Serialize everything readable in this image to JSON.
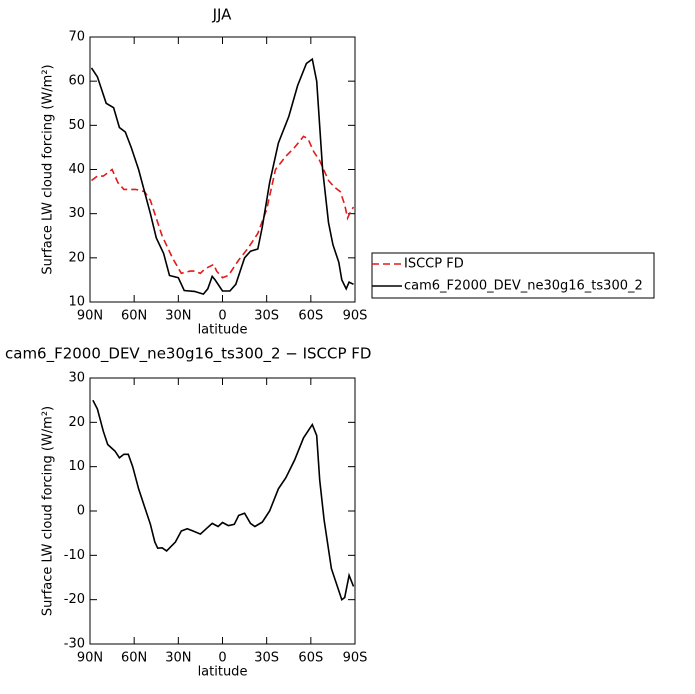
{
  "chart_data": [
    {
      "type": "line",
      "title": "JJA",
      "xlabel": "latitude",
      "ylabel": "Surface LW cloud forcing (W/m²)",
      "xlim": [
        90,
        -90
      ],
      "xticks": [
        {
          "value": 90,
          "label": "90N"
        },
        {
          "value": 60,
          "label": "60N"
        },
        {
          "value": 30,
          "label": "30N"
        },
        0,
        {
          "value": -30,
          "label": "30S"
        },
        {
          "value": -60,
          "label": "60S"
        },
        {
          "value": -90,
          "label": "90S"
        }
      ],
      "ylim": [
        10,
        70
      ],
      "yticks": [
        10,
        20,
        30,
        40,
        50,
        60,
        70
      ],
      "legend": "right",
      "series": [
        {
          "name": "ISCCP FD",
          "color": "#e31a1c",
          "dashed": true,
          "x": [
            89,
            85,
            81,
            75,
            71,
            67,
            59,
            53,
            49,
            46,
            41,
            34,
            28,
            22,
            19,
            15,
            12,
            6,
            4,
            0,
            -4,
            -11,
            -17,
            -24,
            -30,
            -36,
            -43,
            -49,
            -55,
            -58,
            -62,
            -66,
            -72,
            -76,
            -80,
            -83,
            -85,
            -87,
            -89
          ],
          "values": [
            37.5,
            38.5,
            38.5,
            40,
            37,
            35.5,
            35.5,
            35,
            33,
            30,
            25,
            20,
            16.5,
            17,
            17,
            16.5,
            17.5,
            18.5,
            17,
            15.5,
            16,
            19.5,
            22,
            25.5,
            31,
            40,
            43,
            45,
            47.5,
            47,
            44,
            42,
            37.5,
            36,
            35,
            32,
            29,
            30.5,
            31.5
          ]
        },
        {
          "name": "cam6_F2000_DEV_ne30g16_ts300_2",
          "color": "#000000",
          "dashed": false,
          "x": [
            89,
            85,
            79,
            74,
            70,
            66,
            62,
            57,
            49,
            45,
            40,
            36,
            30,
            26,
            19,
            13,
            10,
            7,
            5,
            0,
            -5,
            -9,
            -15,
            -19,
            -24,
            -27,
            -32,
            -38,
            -45,
            -51,
            -57,
            -61,
            -64,
            -68,
            -72,
            -75,
            -79,
            -81,
            -84,
            -86,
            -89
          ],
          "values": [
            63,
            61,
            55,
            54,
            49.5,
            48.5,
            45,
            40,
            30,
            24.5,
            21,
            16,
            15.5,
            12.6,
            12.4,
            11.8,
            13,
            15.8,
            15,
            12.5,
            12.5,
            14,
            20,
            21.5,
            22,
            27,
            37,
            46,
            52,
            59,
            64,
            65,
            60,
            40,
            28,
            23,
            19,
            15,
            13,
            14.5,
            14
          ]
        }
      ]
    },
    {
      "type": "line",
      "title": "cam6_F2000_DEV_ne30g16_ts300_2 − ISCCP FD",
      "xlabel": "latitude",
      "ylabel": "Surface LW cloud forcing (W/m²)",
      "xlim": [
        90,
        -90
      ],
      "xticks": [
        {
          "value": 90,
          "label": "90N"
        },
        {
          "value": 60,
          "label": "60N"
        },
        {
          "value": 30,
          "label": "30N"
        },
        0,
        {
          "value": -30,
          "label": "30S"
        },
        {
          "value": -60,
          "label": "60S"
        },
        {
          "value": -90,
          "label": "90S"
        }
      ],
      "ylim": [
        -30,
        30
      ],
      "yticks": [
        -30,
        -20,
        -10,
        0,
        10,
        20,
        30
      ],
      "series": [
        {
          "color": "#000000",
          "dashed": false,
          "x": [
            88,
            85,
            81,
            78,
            73,
            70,
            67,
            64,
            61,
            57,
            53,
            49,
            46,
            44,
            41,
            38,
            32,
            28,
            24,
            20,
            15,
            11,
            7,
            3,
            0,
            -4,
            -8,
            -11,
            -15,
            -19,
            -22,
            -27,
            -32,
            -38,
            -43,
            -49,
            -55,
            -61,
            -64,
            -66,
            -69,
            -74,
            -79,
            -81,
            -83,
            -86,
            -89
          ],
          "values": [
            25,
            23,
            18,
            15,
            13.5,
            12,
            12.8,
            12.8,
            10,
            5,
            1,
            -3,
            -7,
            -8.4,
            -8.3,
            -9,
            -7,
            -4.5,
            -4,
            -4.5,
            -5.2,
            -4,
            -2.8,
            -3.5,
            -2.6,
            -3.3,
            -3,
            -1,
            -0.5,
            -2.8,
            -3.5,
            -2.5,
            0,
            5,
            7.5,
            11.5,
            16.5,
            19.5,
            17,
            7,
            -2,
            -13,
            -18,
            -20,
            -19.5,
            -14.5,
            -17
          ]
        }
      ]
    }
  ]
}
